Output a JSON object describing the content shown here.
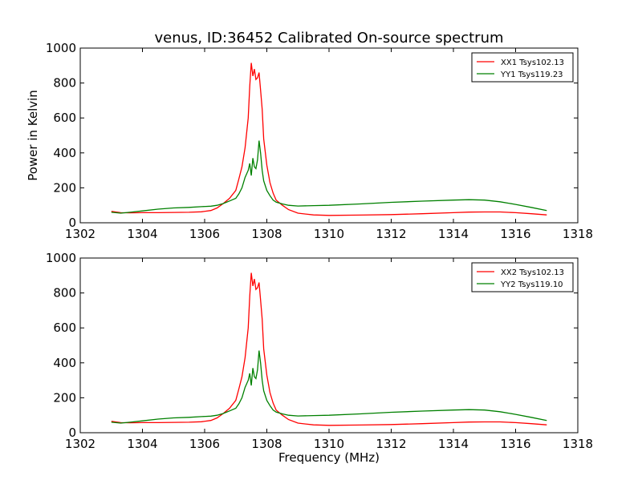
{
  "title": "venus, ID:36452 Calibrated On-source spectrum",
  "ylabel": "Power in Kelvin",
  "xlabel": "Frequency (MHz)",
  "chart_data": [
    {
      "type": "line",
      "title": "venus, ID:36452 Calibrated On-source spectrum",
      "xlabel": "",
      "ylabel": "Power in Kelvin",
      "xlim": [
        1302,
        1318
      ],
      "ylim": [
        0,
        1000
      ],
      "xticks": [
        1302,
        1304,
        1306,
        1308,
        1310,
        1312,
        1314,
        1316,
        1318
      ],
      "yticks": [
        0,
        200,
        400,
        600,
        800,
        1000
      ],
      "legend_position": "top-right",
      "grid": false,
      "series": [
        {
          "name": "XX1 Tsys102.13",
          "color": "#ff0000",
          "x": [
            1303.0,
            1303.3,
            1303.6,
            1304.0,
            1304.5,
            1305.0,
            1305.5,
            1305.9,
            1306.2,
            1306.4,
            1306.6,
            1306.8,
            1307.0,
            1307.1,
            1307.2,
            1307.3,
            1307.4,
            1307.45,
            1307.5,
            1307.55,
            1307.6,
            1307.65,
            1307.7,
            1307.75,
            1307.8,
            1307.85,
            1307.9,
            1308.0,
            1308.1,
            1308.2,
            1308.3,
            1308.5,
            1308.7,
            1309.0,
            1309.5,
            1310.0,
            1311.0,
            1312.0,
            1313.0,
            1314.0,
            1314.5,
            1315.0,
            1315.5,
            1316.0,
            1316.5,
            1317.0
          ],
          "values": [
            65,
            58,
            57,
            58,
            58,
            59,
            60,
            63,
            70,
            85,
            110,
            140,
            185,
            250,
            320,
            430,
            600,
            780,
            915,
            840,
            880,
            820,
            830,
            860,
            760,
            650,
            480,
            330,
            230,
            170,
            130,
            100,
            75,
            55,
            45,
            42,
            44,
            47,
            52,
            58,
            61,
            62,
            62,
            58,
            52,
            45
          ]
        },
        {
          "name": "YY1 Tsys119.23",
          "color": "#008000",
          "x": [
            1303.0,
            1303.3,
            1303.6,
            1304.0,
            1304.5,
            1305.0,
            1305.5,
            1305.9,
            1306.2,
            1306.4,
            1306.6,
            1306.8,
            1307.0,
            1307.1,
            1307.2,
            1307.3,
            1307.4,
            1307.45,
            1307.5,
            1307.55,
            1307.6,
            1307.65,
            1307.7,
            1307.75,
            1307.8,
            1307.85,
            1307.9,
            1308.0,
            1308.1,
            1308.2,
            1308.3,
            1308.5,
            1308.7,
            1309.0,
            1309.5,
            1310.0,
            1311.0,
            1312.0,
            1313.0,
            1314.0,
            1314.5,
            1315.0,
            1315.5,
            1316.0,
            1316.5,
            1317.0
          ],
          "values": [
            60,
            55,
            60,
            68,
            78,
            85,
            88,
            92,
            95,
            100,
            110,
            125,
            140,
            165,
            200,
            260,
            300,
            340,
            270,
            370,
            320,
            310,
            360,
            470,
            400,
            300,
            240,
            185,
            155,
            130,
            118,
            108,
            100,
            96,
            98,
            100,
            108,
            117,
            124,
            130,
            132,
            130,
            120,
            105,
            88,
            70
          ]
        }
      ]
    },
    {
      "type": "line",
      "title": "",
      "xlabel": "Frequency (MHz)",
      "ylabel": "",
      "xlim": [
        1302,
        1318
      ],
      "ylim": [
        0,
        1000
      ],
      "xticks": [
        1302,
        1304,
        1306,
        1308,
        1310,
        1312,
        1314,
        1316,
        1318
      ],
      "yticks": [
        0,
        200,
        400,
        600,
        800,
        1000
      ],
      "legend_position": "top-right",
      "grid": false,
      "series": [
        {
          "name": "XX2 Tsys102.13",
          "color": "#ff0000",
          "x": [
            1303.0,
            1303.3,
            1303.6,
            1304.0,
            1304.5,
            1305.0,
            1305.5,
            1305.9,
            1306.2,
            1306.4,
            1306.6,
            1306.8,
            1307.0,
            1307.1,
            1307.2,
            1307.3,
            1307.4,
            1307.45,
            1307.5,
            1307.55,
            1307.6,
            1307.65,
            1307.7,
            1307.75,
            1307.8,
            1307.85,
            1307.9,
            1308.0,
            1308.1,
            1308.2,
            1308.3,
            1308.5,
            1308.7,
            1309.0,
            1309.5,
            1310.0,
            1311.0,
            1312.0,
            1313.0,
            1314.0,
            1314.5,
            1315.0,
            1315.5,
            1316.0,
            1316.5,
            1317.0
          ],
          "values": [
            65,
            58,
            57,
            58,
            58,
            59,
            60,
            63,
            70,
            85,
            110,
            140,
            185,
            250,
            320,
            430,
            600,
            780,
            915,
            840,
            880,
            820,
            830,
            860,
            760,
            650,
            480,
            330,
            230,
            170,
            130,
            100,
            75,
            55,
            45,
            42,
            44,
            47,
            52,
            58,
            61,
            62,
            62,
            58,
            52,
            45
          ]
        },
        {
          "name": "YY2 Tsys119.10",
          "color": "#008000",
          "x": [
            1303.0,
            1303.3,
            1303.6,
            1304.0,
            1304.5,
            1305.0,
            1305.5,
            1305.9,
            1306.2,
            1306.4,
            1306.6,
            1306.8,
            1307.0,
            1307.1,
            1307.2,
            1307.3,
            1307.4,
            1307.45,
            1307.5,
            1307.55,
            1307.6,
            1307.65,
            1307.7,
            1307.75,
            1307.8,
            1307.85,
            1307.9,
            1308.0,
            1308.1,
            1308.2,
            1308.3,
            1308.5,
            1308.7,
            1309.0,
            1309.5,
            1310.0,
            1311.0,
            1312.0,
            1313.0,
            1314.0,
            1314.5,
            1315.0,
            1315.5,
            1316.0,
            1316.5,
            1317.0
          ],
          "values": [
            60,
            55,
            60,
            68,
            78,
            85,
            88,
            92,
            95,
            100,
            110,
            125,
            140,
            165,
            200,
            260,
            300,
            340,
            270,
            370,
            320,
            310,
            360,
            470,
            400,
            300,
            240,
            185,
            155,
            130,
            118,
            108,
            100,
            96,
            98,
            100,
            108,
            117,
            124,
            130,
            132,
            130,
            120,
            105,
            88,
            70
          ]
        }
      ]
    }
  ]
}
